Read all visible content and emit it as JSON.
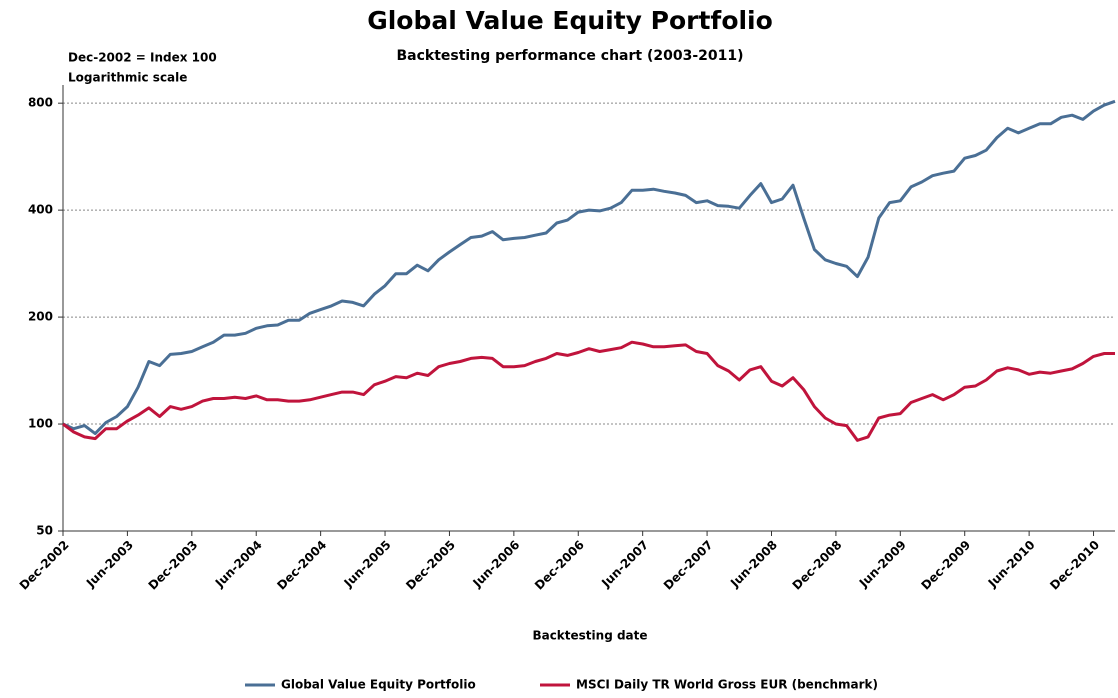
{
  "chart_data": {
    "type": "line",
    "title": "Global Value Equity Portfolio",
    "subtitle": "Backtesting performance chart (2003-2011)",
    "annotations": [
      "Dec-2002 = Index 100",
      "Logarithmic scale"
    ],
    "x_label": "Backtesting date",
    "log_scale": true,
    "grid": true,
    "legend": "bottom",
    "ylim": [
      50,
      900
    ],
    "yticks": [
      50,
      100,
      200,
      400,
      800
    ],
    "categories": [
      "Dec-2002",
      null,
      null,
      null,
      null,
      null,
      "Jun-2003",
      null,
      null,
      null,
      null,
      null,
      "Dec-2003",
      null,
      null,
      null,
      null,
      null,
      "Jun-2004",
      null,
      null,
      null,
      null,
      null,
      "Dec-2004",
      null,
      null,
      null,
      null,
      null,
      "Jun-2005",
      null,
      null,
      null,
      null,
      null,
      "Dec-2005",
      null,
      null,
      null,
      null,
      null,
      "Jun-2006",
      null,
      null,
      null,
      null,
      null,
      "Dec-2006",
      null,
      null,
      null,
      null,
      null,
      "Jun-2007",
      null,
      null,
      null,
      null,
      null,
      "Dec-2007",
      null,
      null,
      null,
      null,
      null,
      "Jun-2008",
      null,
      null,
      null,
      null,
      null,
      "Dec-2008",
      null,
      null,
      null,
      null,
      null,
      "Jun-2009",
      null,
      null,
      null,
      null,
      null,
      "Dec-2009",
      null,
      null,
      null,
      null,
      null,
      "Jun-2010",
      null,
      null,
      null,
      null,
      null,
      "Dec-2010",
      null,
      null
    ],
    "series": [
      {
        "name": "Global Value Equity Portfolio",
        "color": "#4a6f95",
        "values": [
          100,
          97,
          99,
          94,
          101,
          105,
          112,
          127,
          150,
          146,
          157,
          158,
          160,
          165,
          170,
          178,
          178,
          180,
          186,
          189,
          190,
          196,
          196,
          205,
          210,
          215,
          222,
          220,
          215,
          232,
          245,
          265,
          265,
          280,
          270,
          290,
          305,
          320,
          335,
          338,
          348,
          330,
          333,
          335,
          340,
          345,
          368,
          375,
          395,
          400,
          398,
          405,
          420,
          455,
          455,
          458,
          452,
          447,
          440,
          420,
          425,
          412,
          410,
          405,
          440,
          475,
          420,
          430,
          470,
          380,
          310,
          290,
          283,
          278,
          260,
          295,
          380,
          420,
          425,
          465,
          480,
          500,
          508,
          515,
          560,
          570,
          590,
          640,
          680,
          660,
          680,
          700,
          700,
          730,
          740,
          720,
          760,
          790,
          810
        ]
      },
      {
        "name": "MSCI Daily TR World Gross EUR (benchmark)",
        "color": "#c0143c",
        "values": [
          100,
          95,
          92,
          91,
          97,
          97,
          102,
          106,
          111,
          105,
          112,
          110,
          112,
          116,
          118,
          118,
          119,
          118,
          120,
          117,
          117,
          116,
          116,
          117,
          119,
          121,
          123,
          123,
          121,
          129,
          132,
          136,
          135,
          139,
          137,
          145,
          148,
          150,
          153,
          154,
          153,
          145,
          145,
          146,
          150,
          153,
          158,
          156,
          159,
          163,
          160,
          162,
          164,
          170,
          168,
          165,
          165,
          166,
          167,
          160,
          158,
          146,
          141,
          133,
          142,
          145,
          132,
          128,
          135,
          125,
          112,
          104,
          100,
          99,
          90,
          92,
          104,
          106,
          107,
          115,
          118,
          121,
          117,
          121,
          127,
          128,
          133,
          141,
          144,
          142,
          138,
          140,
          139,
          141,
          143,
          148,
          155,
          158,
          158
        ]
      }
    ]
  }
}
